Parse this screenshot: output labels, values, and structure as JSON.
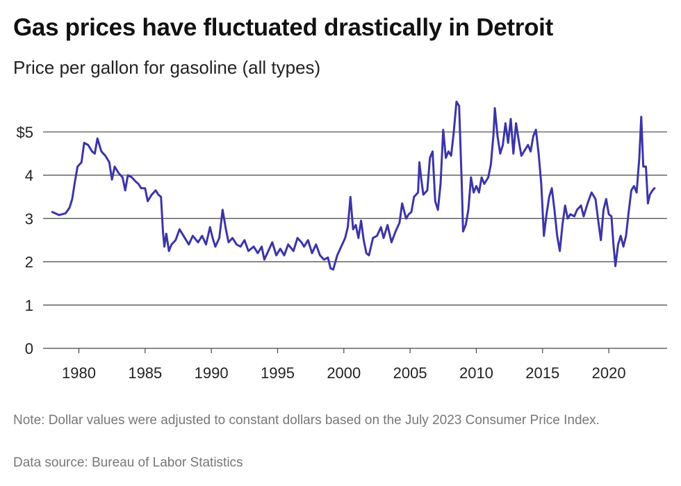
{
  "title": "Gas prices have fluctuated drastically in Detroit",
  "subtitle": "Price per gallon for gasoline (all types)",
  "note": "Note: Dollar values were adjusted to constant dollars based on the July 2023 Consumer Price Index.",
  "source": "Data source: Bureau of Labor Statistics",
  "colors": {
    "line": "#3b35a8",
    "grid": "#444444",
    "note": "#777777"
  },
  "chart_data": {
    "type": "line",
    "title": "Gas prices have fluctuated drastically in Detroit",
    "subtitle": "Price per gallon for gasoline (all types)",
    "xlabel": "",
    "ylabel": "",
    "xlim": [
      1977.3,
      2024.4
    ],
    "ylim": [
      0,
      5.8
    ],
    "grid": true,
    "yticks": [
      {
        "value": 0,
        "label": "0"
      },
      {
        "value": 1,
        "label": "1"
      },
      {
        "value": 2,
        "label": "2"
      },
      {
        "value": 3,
        "label": "3"
      },
      {
        "value": 4,
        "label": "4"
      },
      {
        "value": 5,
        "label": "$5"
      }
    ],
    "xticks": [
      {
        "value": 1980,
        "label": "1980"
      },
      {
        "value": 1985,
        "label": "1985"
      },
      {
        "value": 1990,
        "label": "1990"
      },
      {
        "value": 1995,
        "label": "1995"
      },
      {
        "value": 2000,
        "label": "2000"
      },
      {
        "value": 2005,
        "label": "2005"
      },
      {
        "value": 2010,
        "label": "2010"
      },
      {
        "value": 2015,
        "label": "2015"
      },
      {
        "value": 2020,
        "label": "2020"
      }
    ],
    "series": [
      {
        "points": [
          [
            1978.0,
            3.15
          ],
          [
            1978.5,
            3.08
          ],
          [
            1979.0,
            3.12
          ],
          [
            1979.3,
            3.25
          ],
          [
            1979.5,
            3.45
          ],
          [
            1979.7,
            3.85
          ],
          [
            1979.9,
            4.2
          ],
          [
            1980.2,
            4.3
          ],
          [
            1980.4,
            4.75
          ],
          [
            1980.7,
            4.7
          ],
          [
            1981.0,
            4.55
          ],
          [
            1981.2,
            4.5
          ],
          [
            1981.4,
            4.85
          ],
          [
            1981.7,
            4.55
          ],
          [
            1982.0,
            4.45
          ],
          [
            1982.3,
            4.3
          ],
          [
            1982.5,
            3.9
          ],
          [
            1982.7,
            4.2
          ],
          [
            1983.0,
            4.05
          ],
          [
            1983.3,
            3.95
          ],
          [
            1983.5,
            3.65
          ],
          [
            1983.7,
            4.0
          ],
          [
            1984.0,
            3.95
          ],
          [
            1984.3,
            3.85
          ],
          [
            1984.5,
            3.8
          ],
          [
            1984.7,
            3.7
          ],
          [
            1985.0,
            3.7
          ],
          [
            1985.2,
            3.4
          ],
          [
            1985.5,
            3.55
          ],
          [
            1985.8,
            3.65
          ],
          [
            1986.0,
            3.55
          ],
          [
            1986.2,
            3.5
          ],
          [
            1986.35,
            2.7
          ],
          [
            1986.45,
            2.35
          ],
          [
            1986.6,
            2.65
          ],
          [
            1986.8,
            2.25
          ],
          [
            1987.0,
            2.4
          ],
          [
            1987.3,
            2.5
          ],
          [
            1987.6,
            2.75
          ],
          [
            1988.0,
            2.55
          ],
          [
            1988.3,
            2.4
          ],
          [
            1988.6,
            2.6
          ],
          [
            1989.0,
            2.45
          ],
          [
            1989.3,
            2.6
          ],
          [
            1989.6,
            2.4
          ],
          [
            1989.9,
            2.8
          ],
          [
            1990.1,
            2.55
          ],
          [
            1990.3,
            2.35
          ],
          [
            1990.6,
            2.55
          ],
          [
            1990.85,
            3.2
          ],
          [
            1991.1,
            2.75
          ],
          [
            1991.3,
            2.45
          ],
          [
            1991.6,
            2.55
          ],
          [
            1991.9,
            2.4
          ],
          [
            1992.2,
            2.35
          ],
          [
            1992.5,
            2.5
          ],
          [
            1992.8,
            2.25
          ],
          [
            1993.2,
            2.35
          ],
          [
            1993.5,
            2.2
          ],
          [
            1993.8,
            2.35
          ],
          [
            1994.0,
            2.05
          ],
          [
            1994.3,
            2.25
          ],
          [
            1994.6,
            2.45
          ],
          [
            1994.9,
            2.15
          ],
          [
            1995.2,
            2.3
          ],
          [
            1995.5,
            2.15
          ],
          [
            1995.8,
            2.4
          ],
          [
            1996.2,
            2.25
          ],
          [
            1996.5,
            2.55
          ],
          [
            1996.8,
            2.45
          ],
          [
            1997.0,
            2.35
          ],
          [
            1997.3,
            2.5
          ],
          [
            1997.6,
            2.2
          ],
          [
            1997.9,
            2.4
          ],
          [
            1998.2,
            2.15
          ],
          [
            1998.5,
            2.05
          ],
          [
            1998.8,
            2.1
          ],
          [
            1999.0,
            1.85
          ],
          [
            1999.2,
            1.82
          ],
          [
            1999.5,
            2.15
          ],
          [
            1999.8,
            2.35
          ],
          [
            2000.1,
            2.55
          ],
          [
            2000.3,
            2.8
          ],
          [
            2000.5,
            3.5
          ],
          [
            2000.7,
            2.75
          ],
          [
            2000.9,
            2.85
          ],
          [
            2001.1,
            2.55
          ],
          [
            2001.3,
            2.95
          ],
          [
            2001.5,
            2.5
          ],
          [
            2001.7,
            2.2
          ],
          [
            2001.9,
            2.15
          ],
          [
            2002.2,
            2.55
          ],
          [
            2002.5,
            2.6
          ],
          [
            2002.8,
            2.8
          ],
          [
            2003.0,
            2.55
          ],
          [
            2003.3,
            2.85
          ],
          [
            2003.6,
            2.45
          ],
          [
            2003.9,
            2.7
          ],
          [
            2004.2,
            2.9
          ],
          [
            2004.4,
            3.35
          ],
          [
            2004.7,
            3.0
          ],
          [
            2004.9,
            3.1
          ],
          [
            2005.1,
            3.15
          ],
          [
            2005.3,
            3.5
          ],
          [
            2005.6,
            3.6
          ],
          [
            2005.7,
            4.3
          ],
          [
            2005.85,
            3.9
          ],
          [
            2006.0,
            3.55
          ],
          [
            2006.3,
            3.65
          ],
          [
            2006.5,
            4.4
          ],
          [
            2006.7,
            4.55
          ],
          [
            2006.9,
            3.4
          ],
          [
            2007.1,
            3.2
          ],
          [
            2007.3,
            3.8
          ],
          [
            2007.5,
            5.05
          ],
          [
            2007.7,
            4.4
          ],
          [
            2007.9,
            4.55
          ],
          [
            2008.1,
            4.45
          ],
          [
            2008.3,
            5.0
          ],
          [
            2008.5,
            5.7
          ],
          [
            2008.7,
            5.6
          ],
          [
            2008.9,
            3.8
          ],
          [
            2009.0,
            2.7
          ],
          [
            2009.2,
            2.85
          ],
          [
            2009.4,
            3.2
          ],
          [
            2009.6,
            3.95
          ],
          [
            2009.8,
            3.6
          ],
          [
            2010.0,
            3.75
          ],
          [
            2010.2,
            3.6
          ],
          [
            2010.4,
            3.95
          ],
          [
            2010.6,
            3.8
          ],
          [
            2010.9,
            3.95
          ],
          [
            2011.1,
            4.25
          ],
          [
            2011.3,
            4.95
          ],
          [
            2011.4,
            5.55
          ],
          [
            2011.6,
            4.9
          ],
          [
            2011.8,
            4.5
          ],
          [
            2012.0,
            4.7
          ],
          [
            2012.2,
            5.2
          ],
          [
            2012.4,
            4.75
          ],
          [
            2012.6,
            5.3
          ],
          [
            2012.8,
            4.5
          ],
          [
            2013.0,
            5.2
          ],
          [
            2013.2,
            4.8
          ],
          [
            2013.4,
            4.45
          ],
          [
            2013.6,
            4.55
          ],
          [
            2013.9,
            4.7
          ],
          [
            2014.1,
            4.55
          ],
          [
            2014.3,
            4.9
          ],
          [
            2014.5,
            5.05
          ],
          [
            2014.7,
            4.5
          ],
          [
            2014.9,
            3.8
          ],
          [
            2015.1,
            2.6
          ],
          [
            2015.3,
            3.1
          ],
          [
            2015.5,
            3.5
          ],
          [
            2015.7,
            3.7
          ],
          [
            2015.9,
            3.2
          ],
          [
            2016.1,
            2.6
          ],
          [
            2016.3,
            2.25
          ],
          [
            2016.5,
            2.85
          ],
          [
            2016.7,
            3.3
          ],
          [
            2016.9,
            3.0
          ],
          [
            2017.1,
            3.1
          ],
          [
            2017.4,
            3.05
          ],
          [
            2017.6,
            3.2
          ],
          [
            2017.9,
            3.3
          ],
          [
            2018.1,
            3.05
          ],
          [
            2018.4,
            3.35
          ],
          [
            2018.7,
            3.6
          ],
          [
            2019.0,
            3.45
          ],
          [
            2019.2,
            2.95
          ],
          [
            2019.4,
            2.5
          ],
          [
            2019.6,
            3.2
          ],
          [
            2019.8,
            3.45
          ],
          [
            2020.0,
            3.1
          ],
          [
            2020.2,
            3.05
          ],
          [
            2020.35,
            2.4
          ],
          [
            2020.5,
            1.9
          ],
          [
            2020.7,
            2.4
          ],
          [
            2020.9,
            2.6
          ],
          [
            2021.1,
            2.35
          ],
          [
            2021.3,
            2.6
          ],
          [
            2021.5,
            3.15
          ],
          [
            2021.7,
            3.65
          ],
          [
            2021.9,
            3.75
          ],
          [
            2022.1,
            3.6
          ],
          [
            2022.3,
            4.4
          ],
          [
            2022.45,
            5.35
          ],
          [
            2022.6,
            4.2
          ],
          [
            2022.8,
            4.2
          ],
          [
            2022.95,
            3.35
          ],
          [
            2023.1,
            3.55
          ],
          [
            2023.3,
            3.65
          ],
          [
            2023.45,
            3.7
          ]
        ]
      }
    ]
  }
}
